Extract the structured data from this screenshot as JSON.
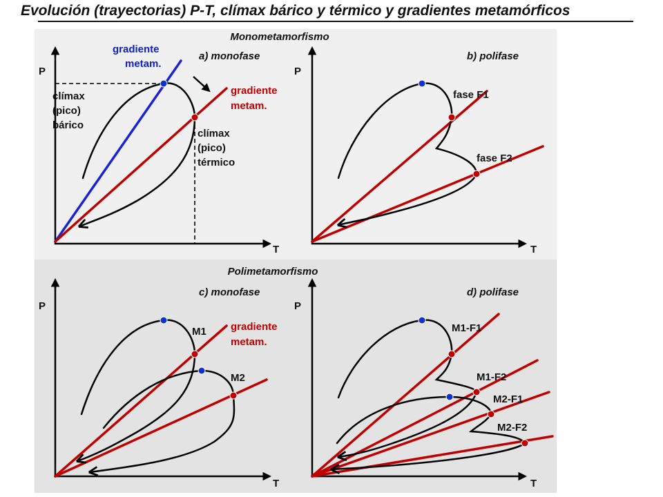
{
  "title": "Evolución (trayectorias) P-T, clímax bárico y térmico y gradientes metamórficos",
  "colors": {
    "gradient_red": "#c00000",
    "gradient_blue": "#1a22d8",
    "peak_p": "#1030d0",
    "peak_t": "#c00000",
    "top_bg": "#f0f0f0",
    "bottom_bg": "#e3e3e3"
  },
  "sections": {
    "mono": {
      "heading": "Monometamorfismo"
    },
    "poli": {
      "heading": "Polimetamorfismo"
    }
  },
  "axes": {
    "p": "P",
    "t": "T"
  },
  "panel_a": {
    "title": "a) monofase",
    "blue_gradient": [
      "gradiente",
      "metam."
    ],
    "red_gradient": [
      "gradiente",
      "metam."
    ],
    "baric_peak": [
      "clímax",
      "(pico)",
      "bárico"
    ],
    "thermal_peak": [
      "clímax",
      "(pico)",
      "térmico"
    ]
  },
  "panel_b": {
    "title": "b) polifase",
    "phase1": "fase F1",
    "phase2": "fase F2"
  },
  "panel_c": {
    "title": "c) monofase",
    "m1": "M1",
    "m2": "M2",
    "red_gradient": [
      "gradiente",
      "metam."
    ]
  },
  "panel_d": {
    "title": "d) polifase",
    "m1f1": "M1-F1",
    "m1f2": "M1-F2",
    "m2f1": "M2-F1",
    "m2f2": "M2-F2"
  }
}
